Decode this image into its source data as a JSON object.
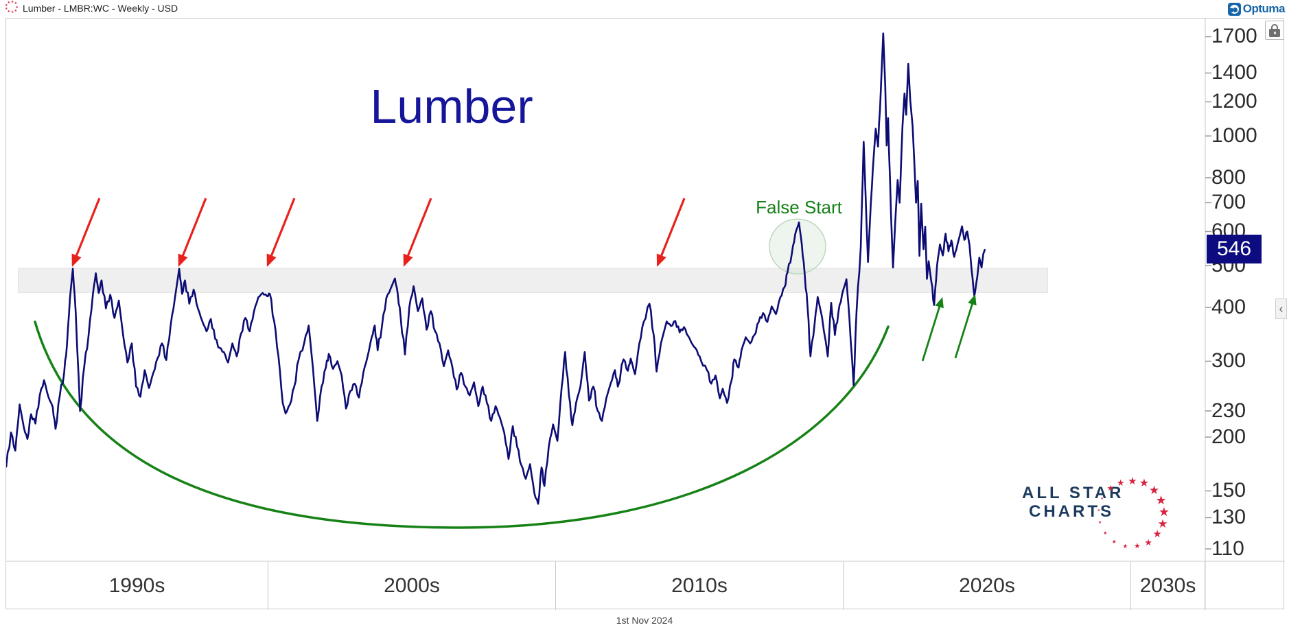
{
  "titlebar": {
    "title": "Lumber - LMBR:WC - Weekly - USD",
    "brand": "Optuma"
  },
  "chart": {
    "title": "Lumber",
    "price_badge": "546",
    "y_axis_ticks": [
      1700,
      1400,
      1200,
      1000,
      800,
      700,
      600,
      500,
      400,
      300,
      230,
      200,
      150,
      130,
      110
    ],
    "x_axis_decades": [
      "1990s",
      "2000s",
      "2010s",
      "2020s",
      "2030s",
      ""
    ],
    "footer_date": "1st Nov 2024",
    "annotations": {
      "false_start_label": "False Start"
    },
    "logo": {
      "line1": "ALL STAR",
      "line2": "CHARTS"
    }
  },
  "chart_data": {
    "type": "line",
    "title": "Lumber",
    "symbol": "LMBR:WC",
    "timeframe": "Weekly",
    "currency": "USD",
    "last_price": 546,
    "x_unit": "year (decimal)",
    "y_scale": "log",
    "xlim": [
      1990.9,
      2035.3
    ],
    "ylim": [
      101,
      1865
    ],
    "series": [
      {
        "name": "Lumber weekly close (USD)",
        "points": [
          [
            1990.88,
            170
          ],
          [
            1991.05,
            205
          ],
          [
            1991.2,
            186
          ],
          [
            1991.35,
            238
          ],
          [
            1991.5,
            210
          ],
          [
            1991.62,
            198
          ],
          [
            1991.75,
            226
          ],
          [
            1991.9,
            215
          ],
          [
            1992.05,
            250
          ],
          [
            1992.2,
            271
          ],
          [
            1992.35,
            248
          ],
          [
            1992.5,
            235
          ],
          [
            1992.6,
            209
          ],
          [
            1992.75,
            250
          ],
          [
            1992.9,
            282
          ],
          [
            1993.0,
            330
          ],
          [
            1993.1,
            420
          ],
          [
            1993.2,
            492
          ],
          [
            1993.3,
            390
          ],
          [
            1993.45,
            230
          ],
          [
            1993.6,
            292
          ],
          [
            1993.75,
            345
          ],
          [
            1993.9,
            430
          ],
          [
            1994.0,
            480
          ],
          [
            1994.1,
            432
          ],
          [
            1994.2,
            462
          ],
          [
            1994.35,
            398
          ],
          [
            1994.5,
            428
          ],
          [
            1994.65,
            378
          ],
          [
            1994.8,
            415
          ],
          [
            1994.95,
            345
          ],
          [
            1995.1,
            298
          ],
          [
            1995.25,
            330
          ],
          [
            1995.4,
            262
          ],
          [
            1995.55,
            248
          ],
          [
            1995.7,
            286
          ],
          [
            1995.85,
            260
          ],
          [
            1996.0,
            282
          ],
          [
            1996.15,
            305
          ],
          [
            1996.3,
            330
          ],
          [
            1996.45,
            302
          ],
          [
            1996.6,
            362
          ],
          [
            1996.75,
            420
          ],
          [
            1996.9,
            492
          ],
          [
            1997.0,
            430
          ],
          [
            1997.1,
            462
          ],
          [
            1997.25,
            408
          ],
          [
            1997.4,
            440
          ],
          [
            1997.55,
            398
          ],
          [
            1997.7,
            372
          ],
          [
            1997.85,
            352
          ],
          [
            1998.0,
            376
          ],
          [
            1998.15,
            338
          ],
          [
            1998.3,
            322
          ],
          [
            1998.45,
            315
          ],
          [
            1998.6,
            298
          ],
          [
            1998.75,
            330
          ],
          [
            1998.9,
            308
          ],
          [
            1999.05,
            348
          ],
          [
            1999.2,
            378
          ],
          [
            1999.35,
            352
          ],
          [
            1999.5,
            392
          ],
          [
            1999.65,
            422
          ],
          [
            1999.8,
            432
          ],
          [
            1999.95,
            425
          ],
          [
            2000.05,
            430
          ],
          [
            2000.2,
            372
          ],
          [
            2000.35,
            308
          ],
          [
            2000.5,
            240
          ],
          [
            2000.6,
            227
          ],
          [
            2000.75,
            238
          ],
          [
            2000.9,
            262
          ],
          [
            2001.05,
            302
          ],
          [
            2001.25,
            332
          ],
          [
            2001.4,
            363
          ],
          [
            2001.55,
            290
          ],
          [
            2001.7,
            218
          ],
          [
            2001.85,
            262
          ],
          [
            2002.0,
            290
          ],
          [
            2002.1,
            312
          ],
          [
            2002.25,
            288
          ],
          [
            2002.4,
            300
          ],
          [
            2002.55,
            278
          ],
          [
            2002.7,
            233
          ],
          [
            2002.85,
            256
          ],
          [
            2003.0,
            266
          ],
          [
            2003.15,
            247
          ],
          [
            2003.3,
            282
          ],
          [
            2003.45,
            308
          ],
          [
            2003.6,
            342
          ],
          [
            2003.7,
            363
          ],
          [
            2003.8,
            318
          ],
          [
            2003.95,
            362
          ],
          [
            2004.1,
            420
          ],
          [
            2004.25,
            442
          ],
          [
            2004.4,
            467
          ],
          [
            2004.5,
            430
          ],
          [
            2004.6,
            380
          ],
          [
            2004.75,
            311
          ],
          [
            2004.9,
            400
          ],
          [
            2005.05,
            448
          ],
          [
            2005.2,
            392
          ],
          [
            2005.35,
            420
          ],
          [
            2005.5,
            355
          ],
          [
            2005.65,
            392
          ],
          [
            2005.8,
            352
          ],
          [
            2005.95,
            330
          ],
          [
            2006.1,
            292
          ],
          [
            2006.25,
            318
          ],
          [
            2006.4,
            290
          ],
          [
            2006.55,
            258
          ],
          [
            2006.7,
            282
          ],
          [
            2006.85,
            262
          ],
          [
            2007.0,
            250
          ],
          [
            2007.15,
            268
          ],
          [
            2007.3,
            236
          ],
          [
            2007.45,
            262
          ],
          [
            2007.6,
            240
          ],
          [
            2007.75,
            218
          ],
          [
            2007.9,
            236
          ],
          [
            2008.05,
            222
          ],
          [
            2008.2,
            205
          ],
          [
            2008.35,
            178
          ],
          [
            2008.5,
            212
          ],
          [
            2008.65,
            190
          ],
          [
            2008.8,
            172
          ],
          [
            2008.95,
            160
          ],
          [
            2009.1,
            173
          ],
          [
            2009.25,
            148
          ],
          [
            2009.38,
            140
          ],
          [
            2009.5,
            170
          ],
          [
            2009.6,
            154
          ],
          [
            2009.75,
            190
          ],
          [
            2009.9,
            214
          ],
          [
            2010.05,
            196
          ],
          [
            2010.2,
            262
          ],
          [
            2010.32,
            315
          ],
          [
            2010.45,
            250
          ],
          [
            2010.57,
            213
          ],
          [
            2010.7,
            240
          ],
          [
            2010.85,
            262
          ],
          [
            2011.0,
            315
          ],
          [
            2011.15,
            243
          ],
          [
            2011.3,
            262
          ],
          [
            2011.45,
            230
          ],
          [
            2011.6,
            218
          ],
          [
            2011.75,
            246
          ],
          [
            2011.9,
            266
          ],
          [
            2012.05,
            286
          ],
          [
            2012.15,
            262
          ],
          [
            2012.35,
            303
          ],
          [
            2012.5,
            285
          ],
          [
            2012.6,
            304
          ],
          [
            2012.75,
            280
          ],
          [
            2012.9,
            330
          ],
          [
            2013.05,
            370
          ],
          [
            2013.25,
            408
          ],
          [
            2013.4,
            345
          ],
          [
            2013.5,
            284
          ],
          [
            2013.65,
            330
          ],
          [
            2013.85,
            371
          ],
          [
            2014.0,
            362
          ],
          [
            2014.15,
            372
          ],
          [
            2014.3,
            350
          ],
          [
            2014.45,
            360
          ],
          [
            2014.6,
            343
          ],
          [
            2014.75,
            328
          ],
          [
            2014.9,
            318
          ],
          [
            2015.05,
            300
          ],
          [
            2015.25,
            286
          ],
          [
            2015.4,
            266
          ],
          [
            2015.55,
            278
          ],
          [
            2015.7,
            246
          ],
          [
            2015.8,
            259
          ],
          [
            2015.95,
            240
          ],
          [
            2016.1,
            270
          ],
          [
            2016.2,
            303
          ],
          [
            2016.35,
            290
          ],
          [
            2016.45,
            318
          ],
          [
            2016.6,
            341
          ],
          [
            2016.75,
            330
          ],
          [
            2016.9,
            345
          ],
          [
            2017.05,
            370
          ],
          [
            2017.2,
            388
          ],
          [
            2017.35,
            370
          ],
          [
            2017.5,
            402
          ],
          [
            2017.65,
            386
          ],
          [
            2017.8,
            422
          ],
          [
            2017.95,
            446
          ],
          [
            2018.05,
            482
          ],
          [
            2018.2,
            532
          ],
          [
            2018.32,
            592
          ],
          [
            2018.45,
            630
          ],
          [
            2018.55,
            560
          ],
          [
            2018.65,
            478
          ],
          [
            2018.75,
            400
          ],
          [
            2018.85,
            308
          ],
          [
            2019.0,
            370
          ],
          [
            2019.1,
            423
          ],
          [
            2019.25,
            380
          ],
          [
            2019.45,
            308
          ],
          [
            2019.57,
            410
          ],
          [
            2019.7,
            345
          ],
          [
            2019.82,
            390
          ],
          [
            2019.95,
            429
          ],
          [
            2020.1,
            465
          ],
          [
            2020.2,
            380
          ],
          [
            2020.35,
            264
          ],
          [
            2020.45,
            390
          ],
          [
            2020.6,
            553
          ],
          [
            2020.7,
            969
          ],
          [
            2020.85,
            510
          ],
          [
            2020.95,
            700
          ],
          [
            2021.05,
            900
          ],
          [
            2021.12,
            1040
          ],
          [
            2021.2,
            945
          ],
          [
            2021.3,
            1300
          ],
          [
            2021.38,
            1730
          ],
          [
            2021.45,
            1300
          ],
          [
            2021.5,
            950
          ],
          [
            2021.55,
            1100
          ],
          [
            2021.65,
            660
          ],
          [
            2021.72,
            495
          ],
          [
            2021.8,
            635
          ],
          [
            2021.88,
            790
          ],
          [
            2021.95,
            700
          ],
          [
            2022.05,
            1055
          ],
          [
            2022.12,
            1255
          ],
          [
            2022.18,
            1120
          ],
          [
            2022.25,
            1470
          ],
          [
            2022.32,
            1210
          ],
          [
            2022.4,
            1055
          ],
          [
            2022.46,
            870
          ],
          [
            2022.52,
            700
          ],
          [
            2022.58,
            787
          ],
          [
            2022.64,
            527
          ],
          [
            2022.7,
            696
          ],
          [
            2022.78,
            546
          ],
          [
            2022.84,
            616
          ],
          [
            2022.9,
            466
          ],
          [
            2022.96,
            512
          ],
          [
            2023.05,
            460
          ],
          [
            2023.15,
            405
          ],
          [
            2023.25,
            500
          ],
          [
            2023.35,
            560
          ],
          [
            2023.45,
            528
          ],
          [
            2023.55,
            593
          ],
          [
            2023.65,
            540
          ],
          [
            2023.75,
            572
          ],
          [
            2023.85,
            524
          ],
          [
            2023.95,
            556
          ],
          [
            2024.05,
            590
          ],
          [
            2024.12,
            617
          ],
          [
            2024.2,
            574
          ],
          [
            2024.3,
            600
          ],
          [
            2024.38,
            558
          ],
          [
            2024.45,
            490
          ],
          [
            2024.55,
            425
          ],
          [
            2024.65,
            470
          ],
          [
            2024.72,
            522
          ],
          [
            2024.8,
            495
          ],
          [
            2024.86,
            532
          ],
          [
            2024.92,
            546
          ]
        ]
      }
    ],
    "annotations": {
      "resistance_zone": {
        "price_low": 433,
        "price_high": 493,
        "year_start": 1991.3,
        "year_end": 2027.1
      },
      "red_arrow_peak_years": [
        1993.17,
        1996.87,
        1999.95,
        2004.7,
        2013.51
      ],
      "false_start": {
        "label": "False Start",
        "year": 2018.4,
        "price": 554
      },
      "green_arrow_years": [
        2023.44,
        2024.58
      ],
      "rounded_bottom": {
        "year_start": 1991.5,
        "year_end": 2021.6
      }
    },
    "legend": "none",
    "grid": "off",
    "colors": {
      "price_line": "#0c0c74",
      "chart_title": "#16169a",
      "red_arrow": "#e8211d",
      "green": "#168216",
      "false_start_circle_stroke": "#bcd9bc",
      "band_fill": "#efefef",
      "band_stroke": "#e2e2e2",
      "badge_bg": "#0c0c80",
      "asc_navy": "#1c3a5e",
      "asc_red": "#d82440",
      "brand_blue": "#1766a9"
    }
  }
}
